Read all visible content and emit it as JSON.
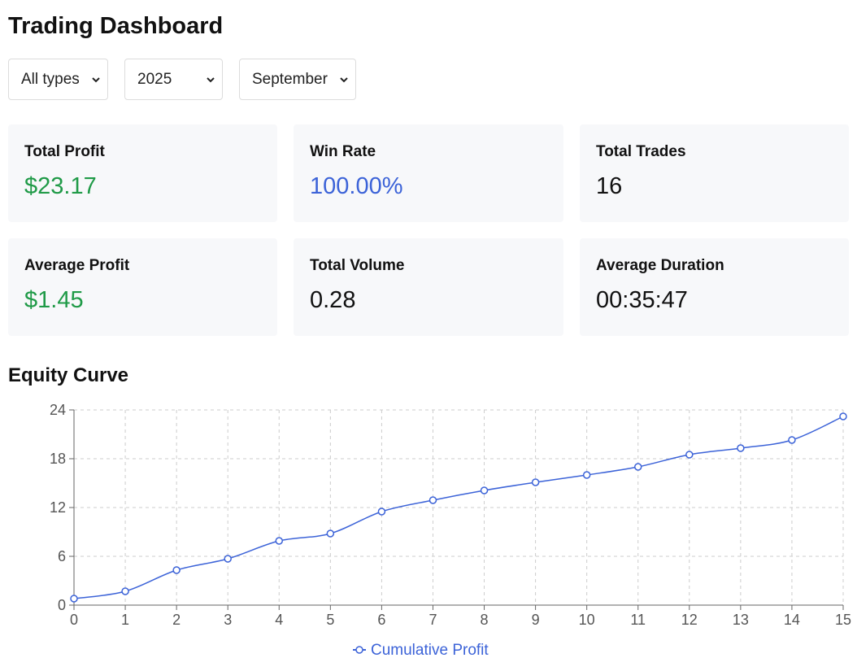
{
  "header": {
    "title": "Trading Dashboard"
  },
  "filters": {
    "type": "All types",
    "year": "2025",
    "month": "September"
  },
  "stats": [
    {
      "label": "Total Profit",
      "value": "$23.17",
      "color": "green"
    },
    {
      "label": "Win Rate",
      "value": "100.00%",
      "color": "blue"
    },
    {
      "label": "Total Trades",
      "value": "16",
      "color": "default"
    },
    {
      "label": "Average Profit",
      "value": "$1.45",
      "color": "green"
    },
    {
      "label": "Total Volume",
      "value": "0.28",
      "color": "default"
    },
    {
      "label": "Average Duration",
      "value": "00:35:47",
      "color": "default"
    }
  ],
  "equity": {
    "title": "Equity Curve"
  },
  "colors": {
    "green": "#1f9a47",
    "blue": "#3c63d8",
    "line": "#3c63d8"
  },
  "chart_data": {
    "type": "line",
    "x": [
      0,
      1,
      2,
      3,
      4,
      5,
      6,
      7,
      8,
      9,
      10,
      11,
      12,
      13,
      14,
      15
    ],
    "series": [
      {
        "name": "Cumulative Profit",
        "values": [
          0.8,
          1.7,
          4.3,
          5.7,
          7.9,
          8.8,
          11.5,
          12.9,
          14.1,
          15.1,
          16.0,
          17.0,
          18.5,
          19.3,
          20.3,
          23.2
        ]
      }
    ],
    "xlim": [
      0,
      15
    ],
    "ylim": [
      0,
      24
    ],
    "yticks": [
      0,
      6,
      12,
      18,
      24
    ],
    "grid": true,
    "legend": "bottom-center"
  }
}
